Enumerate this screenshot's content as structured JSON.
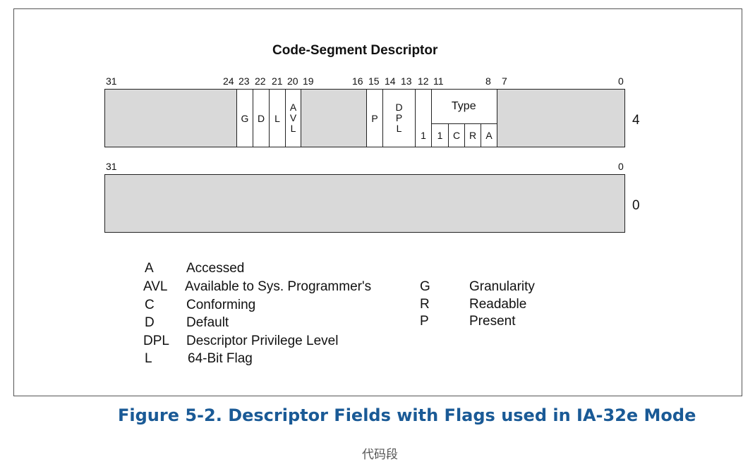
{
  "diagram": {
    "title": "Code-Segment Descriptor",
    "upper_bit_numbers": [
      "31",
      "24",
      "23",
      "22",
      "21",
      "20",
      "19",
      "16",
      "15",
      "14",
      "13",
      "12",
      "11",
      "8",
      "7",
      "0"
    ],
    "lower_bit_numbers": [
      "31",
      "0"
    ],
    "fields": {
      "g": "G",
      "d": "D",
      "l": "L",
      "avl": [
        "A",
        "V",
        "L"
      ],
      "p": "P",
      "dpl": [
        "D",
        "P",
        "L"
      ],
      "s_bit": "1",
      "type_label": "Type",
      "type_bits": [
        "1",
        "C",
        "R",
        "A"
      ]
    },
    "row_labels": [
      "4",
      "0"
    ]
  },
  "legend": {
    "left": [
      {
        "abbr": "A",
        "desc": "Accessed"
      },
      {
        "abbr": "AVL",
        "desc": "Available to Sys. Programmer's"
      },
      {
        "abbr": "C",
        "desc": "Conforming"
      },
      {
        "abbr": "D",
        "desc": "Default"
      },
      {
        "abbr": "DPL",
        "desc": "Descriptor Privilege Level"
      },
      {
        "abbr": "L",
        "desc": "64-Bit Flag"
      }
    ],
    "right": [
      {
        "abbr": "G",
        "desc": "Granularity"
      },
      {
        "abbr": "R",
        "desc": "Readable"
      },
      {
        "abbr": "P",
        "desc": "Present"
      }
    ]
  },
  "caption": "Figure 5-2.  Descriptor Fields with Flags used in IA-32e Mode",
  "footer": "代码段",
  "colors": {
    "caption": "#1a5a96",
    "reserved_fill": "#d9d9d9",
    "border": "#222222"
  }
}
